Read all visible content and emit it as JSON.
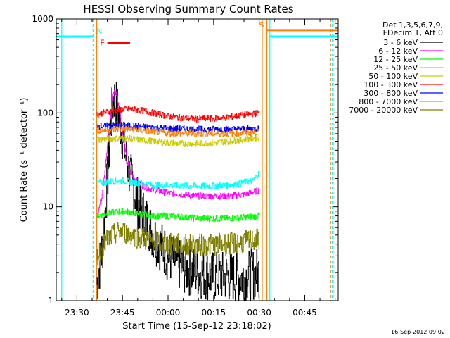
{
  "chart_data": {
    "type": "line",
    "title": "HESSI Observing Summary Count Rates",
    "xlabel": "Start Time (15-Sep-12 23:18:02)",
    "ylabel": "Count Rate (s⁻¹ detector⁻¹)",
    "timestamp": "16-Sep-2012 09:02",
    "y_scale": "log",
    "ylim": [
      1,
      1000
    ],
    "xlim_minutes": [
      23.2,
      116
    ],
    "x_tick_labels": [
      "23:30",
      "23:45",
      "00:00",
      "00:15",
      "00:30",
      "00:45"
    ],
    "x_tick_minutes": [
      30,
      45,
      60,
      75,
      90,
      105
    ],
    "y_tick_labels": [
      "1",
      "10",
      "100",
      "1000"
    ],
    "y_tick_values": [
      1,
      10,
      100,
      1000
    ],
    "grid": false,
    "legend_position": "top-right",
    "legend_header": [
      "Det 1,3,5,6,7,9,",
      "FDecim 1, Att 0"
    ],
    "series": [
      {
        "name": "3 - 6 keV",
        "color": "#000000",
        "x": [
          36.5,
          38.5,
          40,
          41,
          42,
          43,
          44.5,
          46,
          48,
          50,
          53,
          56,
          60,
          65,
          70,
          75,
          80,
          85,
          90
        ],
        "y": [
          1.5,
          4,
          20,
          70,
          150,
          120,
          70,
          35,
          18,
          11,
          7,
          4.5,
          3,
          2.2,
          2,
          1.8,
          1.8,
          1.8,
          2
        ]
      },
      {
        "name": "6 - 12 keV",
        "color": "#ff00ff",
        "x": [
          36.5,
          38,
          39.5,
          41,
          42,
          43,
          44,
          45,
          46.5,
          48,
          50,
          53,
          56,
          60,
          65,
          70,
          75,
          80,
          85,
          90
        ],
        "y": [
          8,
          12,
          30,
          90,
          170,
          160,
          110,
          60,
          30,
          22,
          18,
          16,
          15,
          14,
          13.5,
          13,
          13,
          13,
          13.5,
          15
        ]
      },
      {
        "name": "12 - 25 keV",
        "color": "#00ff00",
        "x": [
          36.5,
          40,
          45,
          50,
          55,
          60,
          70,
          80,
          90
        ],
        "y": [
          8,
          8.5,
          9,
          8.5,
          8,
          8,
          7.5,
          7.5,
          8
        ]
      },
      {
        "name": "25 - 50 keV",
        "color": "#00ffff",
        "x": [
          36.5,
          40,
          45,
          50,
          55,
          60,
          70,
          80,
          88,
          90
        ],
        "y": [
          18,
          18.5,
          19,
          18,
          17,
          17,
          16.5,
          17,
          19,
          23
        ]
      },
      {
        "name": "50 - 100 keV",
        "color": "#cccc00",
        "x": [
          36.5,
          40,
          45,
          50,
          55,
          60,
          65,
          70,
          75,
          80,
          85,
          90
        ],
        "y": [
          52,
          53,
          54,
          52,
          50,
          48,
          47,
          47,
          48,
          50,
          52,
          55
        ]
      },
      {
        "name": "100 - 300 keV",
        "color": "#ff0000",
        "x": [
          36.5,
          40,
          45,
          50,
          55,
          60,
          65,
          70,
          75,
          80,
          85,
          90
        ],
        "y": [
          97,
          102,
          110,
          108,
          100,
          92,
          88,
          86,
          87,
          90,
          95,
          100
        ]
      },
      {
        "name": "300 - 800 keV",
        "color": "#0000ff",
        "x": [
          36.5,
          40,
          45,
          50,
          55,
          60,
          70,
          80,
          90
        ],
        "y": [
          72,
          73,
          74,
          72,
          70,
          68,
          67,
          67,
          68
        ]
      },
      {
        "name": "800 - 7000 keV",
        "color": "#ff8000",
        "x": [
          36.5,
          40,
          45,
          50,
          55,
          60,
          70,
          80,
          90
        ],
        "y": [
          65,
          66,
          68,
          66,
          63,
          61,
          60,
          60,
          62
        ]
      },
      {
        "name": "7000 - 20000 keV",
        "color": "#808000",
        "x": [
          36.5,
          38,
          40,
          44,
          48,
          52,
          56,
          60,
          70,
          80,
          90
        ],
        "y": [
          3,
          3.5,
          4.5,
          5.5,
          5,
          4.5,
          4.2,
          4,
          3.9,
          4,
          4.5
        ]
      }
    ],
    "annotations": [
      {
        "label": "N",
        "color": "#00ffff",
        "x_start": 23.2,
        "x_end": 35.5,
        "y": 650
      },
      {
        "label": "F",
        "color": "#ff0000",
        "x_start": 40,
        "x_end": 47.5,
        "y": 560
      },
      {
        "label": "S",
        "color": "#ff8000",
        "x_start": 92.5,
        "x_end": 116,
        "y": 760
      },
      {
        "label": "",
        "color": "#00ffff",
        "x_start": 93.5,
        "x_end": 116,
        "y": 650
      }
    ],
    "vertical_markers": [
      {
        "x": 25,
        "color": "#00ffff",
        "style": "solid"
      },
      {
        "x": 35.3,
        "color": "#00ffff",
        "style": "dashed"
      },
      {
        "x": 36.5,
        "color": "#ff8000",
        "style": "solid"
      },
      {
        "x": 91,
        "color": "#ff8000",
        "style": "solid"
      },
      {
        "x": 92.5,
        "color": "#ff8000",
        "style": "solid"
      },
      {
        "x": 93.5,
        "color": "#00ffff",
        "style": "solid"
      },
      {
        "x": 113.5,
        "color": "#ff8000",
        "style": "dashed"
      },
      {
        "x": 114,
        "color": "#00ffff",
        "style": "dashed"
      }
    ]
  }
}
